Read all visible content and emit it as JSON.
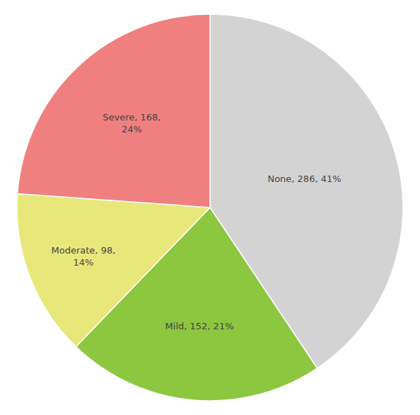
{
  "chart_data": {
    "type": "pie",
    "values": [
      286,
      152,
      98,
      168
    ],
    "value_labels": [
      "None, 286, 41%",
      "Mild, 152, 21%",
      "Moderate, 98,\n14%",
      "Severe, 168,\n24%"
    ],
    "colors": [
      "#d3d3d3",
      "#8dc63f",
      "#e8e87a",
      "#f08080"
    ],
    "data_labels": true
  }
}
